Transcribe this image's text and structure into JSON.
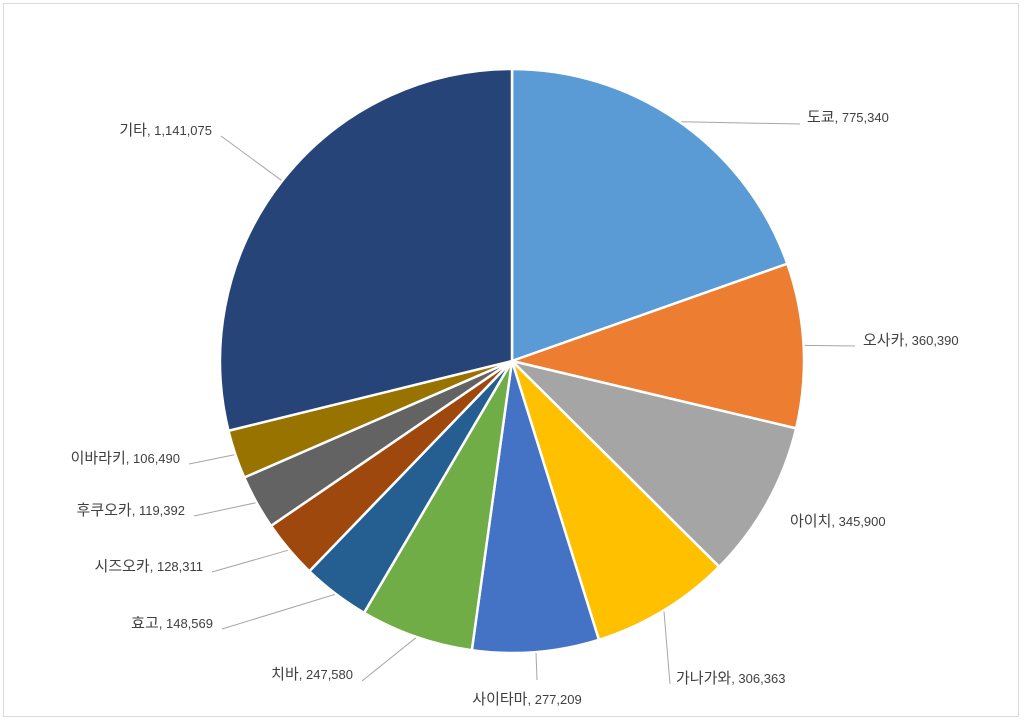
{
  "chart_data": {
    "type": "pie",
    "title": "",
    "slices": [
      {
        "label": "도쿄",
        "value": 775340,
        "value_text": "775,340",
        "color": "#5B9BD5"
      },
      {
        "label": "오사카",
        "value": 360390,
        "value_text": "360,390",
        "color": "#ED7D31"
      },
      {
        "label": "아이치",
        "value": 345900,
        "value_text": "345,900",
        "color": "#A5A5A5"
      },
      {
        "label": "가나가와",
        "value": 306363,
        "value_text": "306,363",
        "color": "#FFC000"
      },
      {
        "label": "사이타마",
        "value": 277209,
        "value_text": "277,209",
        "color": "#4472C4"
      },
      {
        "label": "치바",
        "value": 247580,
        "value_text": "247,580",
        "color": "#70AD47"
      },
      {
        "label": "효고",
        "value": 148569,
        "value_text": "148,569",
        "color": "#255E91"
      },
      {
        "label": "시즈오카",
        "value": 128311,
        "value_text": "128,311",
        "color": "#9E480E"
      },
      {
        "label": "후쿠오카",
        "value": 119392,
        "value_text": "119,392",
        "color": "#636363"
      },
      {
        "label": "이바라키",
        "value": 106490,
        "value_text": "106,490",
        "color": "#997300"
      },
      {
        "label": "기타",
        "value": 1141075,
        "value_text": "1,141,075",
        "color": "#264478"
      }
    ],
    "data_labels": "category, value",
    "leader_lines": true,
    "legend": "none",
    "start_angle": "12 o'clock",
    "direction": "clockwise"
  }
}
